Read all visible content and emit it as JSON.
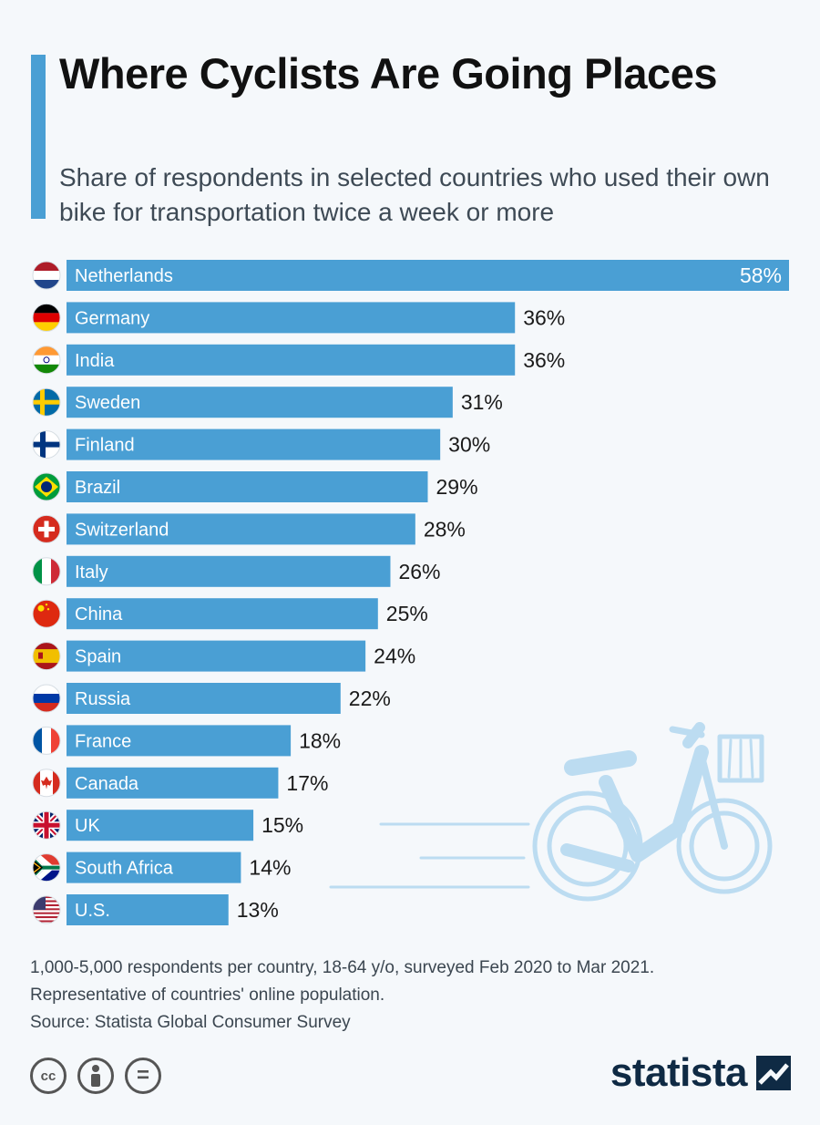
{
  "header": {
    "title": "Where Cyclists Are Going Places",
    "subtitle": "Share of respondents in selected countries who used their own bike for transportation twice a week or more"
  },
  "chart_data": {
    "type": "bar",
    "orientation": "horizontal",
    "unit": "%",
    "categories": [
      "Netherlands",
      "Germany",
      "India",
      "Sweden",
      "Finland",
      "Brazil",
      "Switzerland",
      "Italy",
      "China",
      "Spain",
      "Russia",
      "France",
      "Canada",
      "UK",
      "South Africa",
      "U.S."
    ],
    "values": [
      58,
      36,
      36,
      31,
      30,
      29,
      28,
      26,
      25,
      24,
      22,
      18,
      17,
      15,
      14,
      13
    ],
    "value_labels": [
      "58%",
      "36%",
      "36%",
      "31%",
      "30%",
      "29%",
      "28%",
      "26%",
      "25%",
      "24%",
      "22%",
      "18%",
      "17%",
      "15%",
      "14%",
      "13%"
    ],
    "flags": [
      "netherlands-flag",
      "germany-flag",
      "india-flag",
      "sweden-flag",
      "finland-flag",
      "brazil-flag",
      "switzerland-flag",
      "italy-flag",
      "china-flag",
      "spain-flag",
      "russia-flag",
      "france-flag",
      "canada-flag",
      "uk-flag",
      "south-africa-flag",
      "us-flag"
    ],
    "xlim": [
      0,
      58
    ],
    "bar_color": "#4a9fd4",
    "grid": false,
    "legend": "none"
  },
  "footer": {
    "note_line1": "1,000-5,000 respondents per country, 18-64 y/o, surveyed Feb 2020 to Mar 2021.",
    "note_line2": "Representative of countries' online population.",
    "source": "Source: Statista Global Consumer Survey",
    "license_icons": [
      "cc-icon",
      "attribution-icon",
      "no-derivatives-icon"
    ],
    "cc_text": "cc",
    "equals_text": "=",
    "brand": "statista"
  },
  "colors": {
    "accent": "#4a9fd4",
    "background": "#f5f8fb",
    "brand": "#0f2a44",
    "illustration": "#bcdcf1"
  }
}
